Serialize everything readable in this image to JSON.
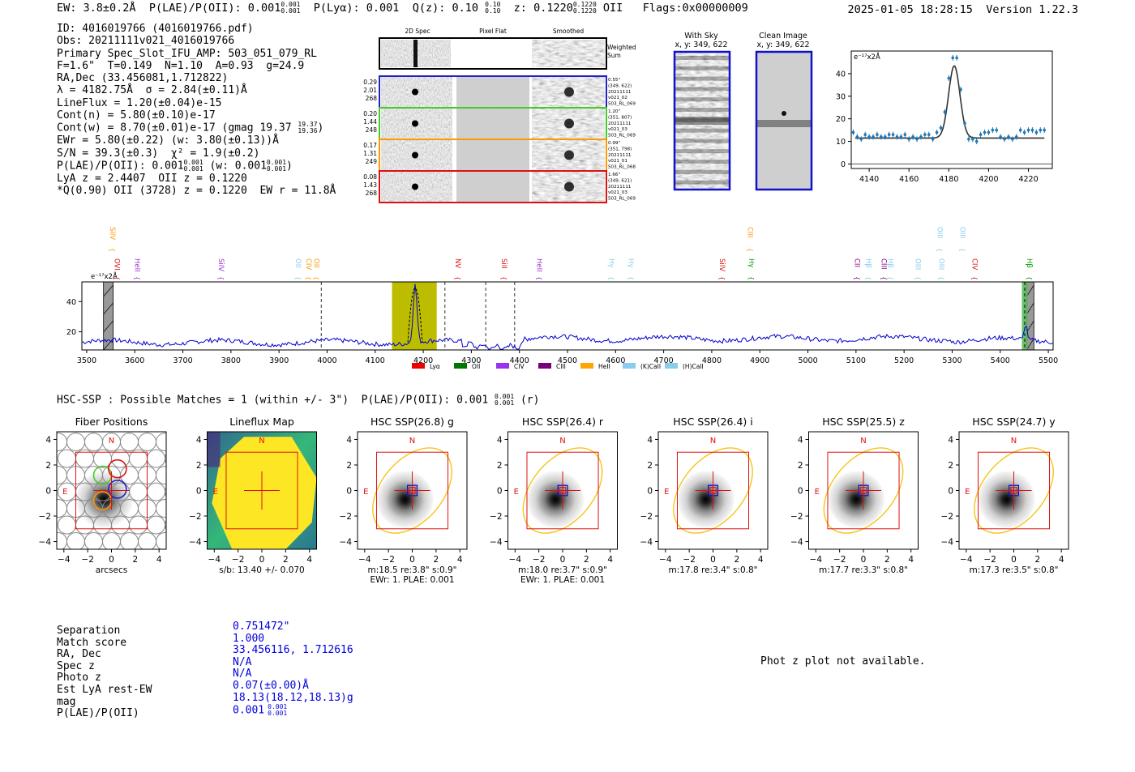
{
  "header": {
    "ew": "EW: 3.8±0.2Å",
    "plae_label": "P(LAE)/P(OII):",
    "plae_val": "0.001",
    "plae_hi": "0.001",
    "plae_lo": "0.001",
    "plya_label": "P(Lyα):",
    "plya_val": "0.001",
    "q_label": "Q(z):",
    "q_val": "0.10",
    "q_hi": "0.10",
    "q_lo": "0.10",
    "z_label": "z:",
    "z_val": "0.1220",
    "z_hi": "0.1220",
    "z_lo": "0.1220",
    "z_line": "OII",
    "flags": "Flags:0x00000009",
    "datetime": "2025-01-05 18:28:15",
    "version": "Version 1.22.3"
  },
  "info": {
    "id": "ID: 4016019766 (4016019766.pdf)",
    "obs": "Obs: 20211111v021_4016019766",
    "slot": "Primary Spec_Slot_IFU_AMP: 503_051_079_RL",
    "fiber": "F=1.6\"  T=0.149  N=1.10  A=0.93  g=24.9",
    "radec": "RA,Dec (33.456081,1.712822)",
    "lambda": "λ = 4182.75Å  σ = 2.84(±0.11)Å",
    "lineflux": "LineFlux = 1.20(±0.04)e-15",
    "contn": "Cont(n) = 5.80(±0.10)e-17",
    "contw": "Cont(w) = 8.70(±0.01)e-17 (gmag 19.37",
    "contw_hi": "19.37",
    "contw_lo": "19.36",
    "ewr": "EWr = 5.80(±0.22) (w: 3.80(±0.13))Å",
    "sn": "S/N = 39.3(±0.3)  χ² = 1.9(±0.2)",
    "plae": "P(LAE)/P(OII): 0.001",
    "plae_hi": "0.001",
    "plae_lo": "0.001",
    "plae_w": "(w: 0.001",
    "plae_w_hi": "0.001",
    "plae_w_lo": "0.001",
    "lya": "LyA z = 2.4407  OII z = 0.1220",
    "q": "*Q(0.90) OII (3728) z = 0.1220  EW r = 11.8Å"
  },
  "spec2d": {
    "headers": [
      "2D Spec",
      "Pixel Flat",
      "Smoothed"
    ],
    "weighted_label": "Weighted Sum",
    "rows": [
      {
        "left": [
          "0.29",
          "2.01",
          "268"
        ],
        "right": [
          "0.55\"",
          "(349, 622)",
          "20211111",
          "v021_02",
          "503_RL_069"
        ],
        "color": "#1f1fcc"
      },
      {
        "left": [
          "0.20",
          "1.44",
          "248"
        ],
        "right": [
          "1.20\"",
          "(351, 807)",
          "20211111",
          "v021_03",
          "503_RL_069"
        ],
        "color": "#44cc22"
      },
      {
        "left": [
          "0.17",
          "1.31",
          "249"
        ],
        "right": [
          "0.99\"",
          "(351, 798)",
          "20211111",
          "v021_01",
          "503_RL_068"
        ],
        "color": "#ff9900"
      },
      {
        "left": [
          "0.08",
          "1.43",
          "268"
        ],
        "right": [
          "1.66\"",
          "(349, 621)",
          "20211111",
          "v021_03",
          "503_RL_069"
        ],
        "color": "#dd1111"
      }
    ]
  },
  "cutouts": {
    "with_sky": "With Sky",
    "with_sky_xy": "x, y: 349, 622",
    "clean": "Clean Image",
    "clean_xy": "x, y: 349, 622"
  },
  "chart_data": [
    {
      "type": "scatter",
      "title": "",
      "ylabel": "e⁻¹⁷x2Å",
      "xlim": [
        4131,
        4232
      ],
      "ylim": [
        -2,
        50
      ],
      "xticks": [
        4140,
        4160,
        4180,
        4200,
        4220
      ],
      "yticks": [
        0,
        10,
        20,
        30,
        40
      ],
      "points_x": [
        4132,
        4134,
        4136,
        4138,
        4140,
        4142,
        4144,
        4146,
        4148,
        4150,
        4152,
        4154,
        4156,
        4158,
        4160,
        4162,
        4164,
        4166,
        4168,
        4170,
        4172,
        4174,
        4176,
        4178,
        4180,
        4182,
        4184,
        4186,
        4188,
        4190,
        4192,
        4194,
        4196,
        4198,
        4200,
        4202,
        4204,
        4206,
        4208,
        4210,
        4212,
        4214,
        4216,
        4218,
        4220,
        4222,
        4224,
        4226,
        4228
      ],
      "points_y": [
        14,
        12,
        11,
        13,
        12,
        12,
        13,
        12,
        12,
        13,
        13,
        12,
        12,
        13,
        11,
        12,
        11,
        12,
        13,
        13,
        11,
        14,
        16,
        23,
        38,
        47,
        47,
        33,
        18,
        11,
        11,
        10,
        13,
        14,
        14,
        15,
        15,
        12,
        11,
        12,
        11,
        12,
        15,
        14,
        15,
        15,
        14,
        15,
        15
      ],
      "fit": {
        "continuum": 11.5,
        "amplitude": 32,
        "center": 4182.75,
        "sigma": 2.84
      }
    },
    {
      "type": "line",
      "ylabel": "e⁻¹⁷x2Å",
      "xlim": [
        3490,
        5510
      ],
      "ylim": [
        8,
        53
      ],
      "xticks": [
        3500,
        3600,
        3700,
        3800,
        3900,
        4000,
        4100,
        4200,
        4300,
        4400,
        4500,
        4600,
        4700,
        4800,
        4900,
        5000,
        5100,
        5200,
        5300,
        5400,
        5500
      ],
      "yticks": [
        20,
        40
      ],
      "peak": {
        "center": 4183,
        "height": 38,
        "sigma": 4
      },
      "highlight_band": [
        4135,
        4228
      ],
      "gray_bands": [
        [
          3535,
          3555
        ],
        [
          5455,
          5470
        ]
      ],
      "green_band": [
        5445,
        5457
      ],
      "dashed_lines": [
        3988,
        4245,
        4330,
        4390
      ],
      "line_markers": [
        {
          "label": "SiIV",
          "x": 3544,
          "color": "#ff9900",
          "row": "high"
        },
        {
          "label": "OVI",
          "x": 3553,
          "color": "#dd1111",
          "row": "low"
        },
        {
          "label": "HeII",
          "x": 3595,
          "color": "#9933cc",
          "row": "low"
        },
        {
          "label": "SiIV",
          "x": 3770,
          "color": "#9933cc",
          "row": "low"
        },
        {
          "label": "OII",
          "x": 3930,
          "color": "#88ccee",
          "row": "low"
        },
        {
          "label": "CIV",
          "x": 3952,
          "color": "#ff9900",
          "row": "low"
        },
        {
          "label": "OII",
          "x": 3968,
          "color": "#ff9900",
          "row": "low"
        },
        {
          "label": "NV",
          "x": 4262,
          "color": "#dd1111",
          "row": "low"
        },
        {
          "label": "SiII",
          "x": 4358,
          "color": "#dd1111",
          "row": "low"
        },
        {
          "label": "HeII",
          "x": 4432,
          "color": "#9933cc",
          "row": "low"
        },
        {
          "label": "Hγ",
          "x": 4582,
          "color": "#88ccee",
          "row": "low"
        },
        {
          "label": "Hγ",
          "x": 4622,
          "color": "#88ccee",
          "row": "low"
        },
        {
          "label": "SiIV",
          "x": 4812,
          "color": "#dd1111",
          "row": "low"
        },
        {
          "label": "CIII",
          "x": 4870,
          "color": "#ff9900",
          "row": "high"
        },
        {
          "label": "Hγ",
          "x": 4873,
          "color": "#009900",
          "row": "low"
        },
        {
          "label": "CII",
          "x": 5093,
          "color": "#880088",
          "row": "low"
        },
        {
          "label": "Hβ",
          "x": 5116,
          "color": "#88ccee",
          "row": "low"
        },
        {
          "label": "CIII",
          "x": 5148,
          "color": "#880088",
          "row": "low"
        },
        {
          "label": "Hβ",
          "x": 5162,
          "color": "#88ccee",
          "row": "low"
        },
        {
          "label": "OIII",
          "x": 5219,
          "color": "#88ccee",
          "row": "low"
        },
        {
          "label": "OIII",
          "x": 5265,
          "color": "#88ccee",
          "row": "high"
        },
        {
          "label": "OIII",
          "x": 5268,
          "color": "#88ccee",
          "row": "low"
        },
        {
          "label": "OIII",
          "x": 5312,
          "color": "#88ccee",
          "row": "high"
        },
        {
          "label": "CIV",
          "x": 5337,
          "color": "#dd1111",
          "row": "low"
        },
        {
          "label": "Hβ",
          "x": 5451,
          "color": "#009900",
          "row": "low"
        }
      ],
      "legend": [
        {
          "label": "Lyα",
          "color": "#ee0000"
        },
        {
          "label": "OII",
          "color": "#007700"
        },
        {
          "label": "CIV",
          "color": "#9933ee"
        },
        {
          "label": "CIII",
          "color": "#770077"
        },
        {
          "label": "HeII",
          "color": "#ffa500"
        },
        {
          "label": "(K)CaII",
          "color": "#88ccee"
        },
        {
          "label": "(H)CaII",
          "color": "#88ccee"
        }
      ]
    }
  ],
  "hsc": {
    "title": "HSC-SSP : Possible Matches = 1 (within +/- 3\")  P(LAE)/P(OII): 0.001",
    "title_hi": "0.001",
    "title_lo": "0.001",
    "title_end": "(r)",
    "axis_ticks": [
      "4",
      "2",
      "0",
      "−2",
      "−4"
    ],
    "x_ticks": [
      "−4",
      "−2",
      "0",
      "2",
      "4"
    ],
    "panels": [
      {
        "title": "Fiber Positions",
        "label1": "arcsecs",
        "label2": "",
        "type": "fiber",
        "ellipse": 0
      },
      {
        "title": "Lineflux Map",
        "label1": "s/b: 13.40 +/- 0.070",
        "label2": "",
        "type": "lineflux",
        "ellipse": 0
      },
      {
        "title": "HSC SSP(26.8) g",
        "label1": "m:18.5  re:3.8\"  s:0.9\"",
        "label2": "EWr: 1. PLAE: 0.001",
        "type": "img",
        "ellipse": 1
      },
      {
        "title": "HSC SSP(26.4) r",
        "label1": "m:18.0  re:3.7\"  s:0.9\"",
        "label2": "EWr: 1. PLAE: 0.001",
        "type": "img",
        "ellipse": 1
      },
      {
        "title": "HSC SSP(26.4) i",
        "label1": "m:17.8  re:3.4\"  s:0.8\"",
        "label2": "",
        "type": "img",
        "ellipse": 1
      },
      {
        "title": "HSC SSP(25.5) z",
        "label1": "m:17.7  re:3.3\"  s:0.8\"",
        "label2": "",
        "type": "img",
        "ellipse": 1
      },
      {
        "title": "HSC SSP(24.7) y",
        "label1": "m:17.3  re:3.5\"  s:0.8\"",
        "label2": "",
        "type": "img",
        "ellipse": 1
      }
    ]
  },
  "match": {
    "labels": [
      "Separation",
      "Match score",
      "RA, Dec",
      "Spec z",
      "Photo z",
      "Est LyA rest-EW",
      "mag",
      "P(LAE)/P(OII)"
    ],
    "values": [
      "0.751472\"",
      "1.000",
      "33.456116, 1.712616",
      "N/A",
      "N/A",
      "0.07(±0.00)Å",
      "18.13(18.12,18.13)g",
      "0.001"
    ],
    "plae_hi": "0.001",
    "plae_lo": "0.001"
  },
  "photz_note": "Phot z plot not available."
}
